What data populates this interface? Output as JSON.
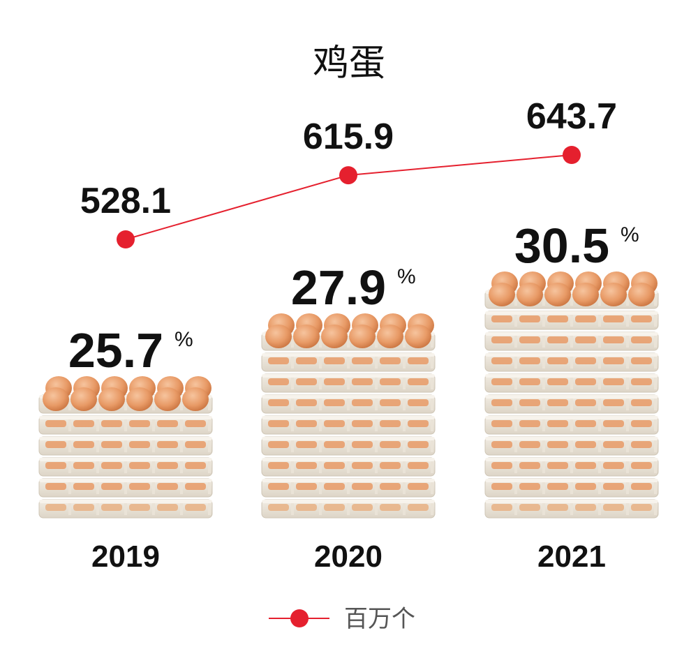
{
  "chart_data": {
    "type": "line",
    "title": "鸡蛋",
    "categories": [
      "2019",
      "2020",
      "2021"
    ],
    "series": [
      {
        "name": "百万个",
        "values": [
          528.1,
          615.9,
          643.7
        ],
        "color": "#e5202e"
      }
    ],
    "bar_annotations": [
      {
        "value": 25.7,
        "label": "25.7",
        "unit": "%",
        "trays": 6
      },
      {
        "value": 27.9,
        "label": "27.9",
        "unit": "%",
        "trays": 9
      },
      {
        "value": 30.5,
        "label": "30.5",
        "unit": "%",
        "trays": 11
      }
    ],
    "value_labels": [
      "528.1",
      "615.9",
      "643.7"
    ],
    "legend": {
      "label": "百万个",
      "position": "bottom-center"
    },
    "grid": false,
    "pictogram_icon": "egg-tray-icon"
  }
}
